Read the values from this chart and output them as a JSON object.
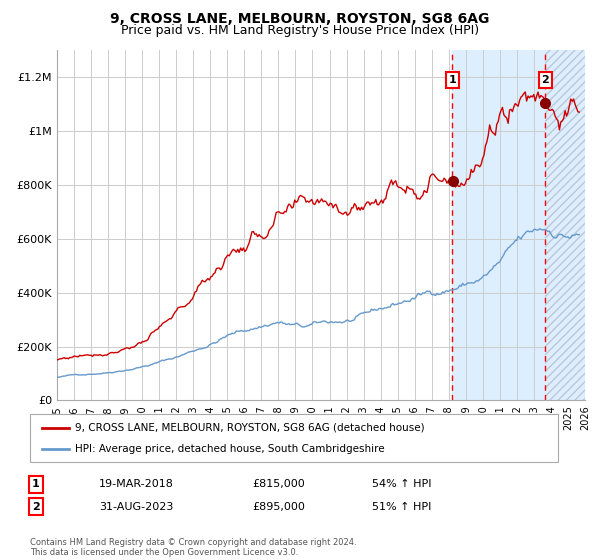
{
  "title": "9, CROSS LANE, MELBOURN, ROYSTON, SG8 6AG",
  "subtitle": "Price paid vs. HM Land Registry's House Price Index (HPI)",
  "title_fontsize": 10,
  "subtitle_fontsize": 9,
  "x_start_year": 1995,
  "x_end_year": 2026,
  "ylim": [
    0,
    1300000
  ],
  "yticks": [
    0,
    200000,
    400000,
    600000,
    800000,
    1000000,
    1200000
  ],
  "ytick_labels": [
    "£0",
    "£200K",
    "£400K",
    "£600K",
    "£800K",
    "£1M",
    "£1.2M"
  ],
  "sale1_year": 2018.21,
  "sale1_price": 815000,
  "sale1_label": "1",
  "sale1_date": "19-MAR-2018",
  "sale1_hpi_pct": "54%",
  "sale2_year": 2023.67,
  "sale2_price": 895000,
  "sale2_label": "2",
  "sale2_date": "31-AUG-2023",
  "sale2_hpi_pct": "51%",
  "red_line_color": "#cc0000",
  "blue_line_color": "#6699cc",
  "background_color": "#ffffff",
  "grid_color": "#cccccc",
  "shade_color": "#ddeeff",
  "legend_text1": "9, CROSS LANE, MELBOURN, ROYSTON, SG8 6AG (detached house)",
  "legend_text2": "HPI: Average price, detached house, South Cambridgeshire",
  "footnote": "Contains HM Land Registry data © Crown copyright and database right 2024.\nThis data is licensed under the Open Government Licence v3.0."
}
